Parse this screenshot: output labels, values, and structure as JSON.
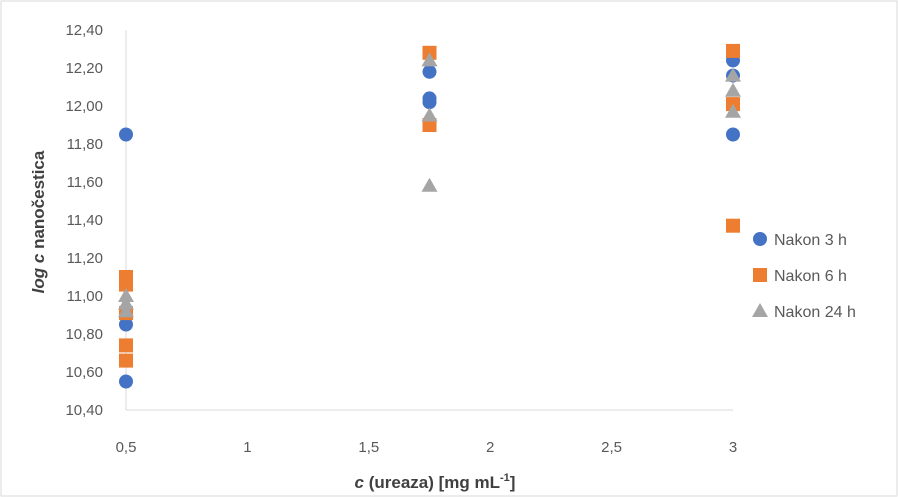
{
  "chart_data": {
    "type": "scatter",
    "xlim": [
      0.5,
      3
    ],
    "ylim": [
      10.4,
      12.4
    ],
    "x_ticks": [
      "0,5",
      "1",
      "1,5",
      "2",
      "2,5",
      "3"
    ],
    "x_tick_values": [
      0.5,
      1,
      1.5,
      2,
      2.5,
      3
    ],
    "y_ticks": [
      "10,40",
      "10,60",
      "10,80",
      "11,00",
      "11,20",
      "11,40",
      "11,60",
      "11,80",
      "12,00",
      "12,20",
      "12,40"
    ],
    "y_tick_values": [
      10.4,
      10.6,
      10.8,
      11.0,
      11.2,
      11.4,
      11.6,
      11.8,
      12.0,
      12.2,
      12.4
    ],
    "xlabel": {
      "italic": "c",
      "rest": " (ureaza) [mg mL",
      "sup": "-1",
      "end": "]"
    },
    "ylabel": {
      "italic": "log c",
      "rest": " nanočestica"
    },
    "grid": false,
    "legend_position": "right",
    "series": [
      {
        "name": "Nakon 3 h",
        "marker": "circle",
        "color": "#4472C4",
        "points": [
          [
            0.5,
            11.85
          ],
          [
            0.5,
            10.85
          ],
          [
            0.5,
            10.55
          ],
          [
            0.5,
            10.9
          ],
          [
            1.75,
            12.18
          ],
          [
            1.75,
            12.04
          ],
          [
            1.75,
            12.02
          ],
          [
            3,
            12.24
          ],
          [
            3,
            12.16
          ],
          [
            3,
            11.85
          ]
        ]
      },
      {
        "name": "Nakon 6 h",
        "marker": "square",
        "color": "#ED7D31",
        "points": [
          [
            0.5,
            11.1
          ],
          [
            0.5,
            11.06
          ],
          [
            0.5,
            10.91
          ],
          [
            0.5,
            10.74
          ],
          [
            0.5,
            10.66
          ],
          [
            1.75,
            12.28
          ],
          [
            1.75,
            11.9
          ],
          [
            3,
            12.29
          ],
          [
            3,
            12.01
          ],
          [
            3,
            11.37
          ]
        ]
      },
      {
        "name": "Nakon 24 h",
        "marker": "triangle",
        "color": "#A5A5A5",
        "points": [
          [
            0.5,
            11.0
          ],
          [
            0.5,
            10.96
          ],
          [
            0.5,
            10.92
          ],
          [
            1.75,
            12.24
          ],
          [
            1.75,
            11.95
          ],
          [
            1.75,
            11.58
          ],
          [
            3,
            12.16
          ],
          [
            3,
            12.08
          ],
          [
            3,
            11.97
          ]
        ]
      }
    ]
  }
}
